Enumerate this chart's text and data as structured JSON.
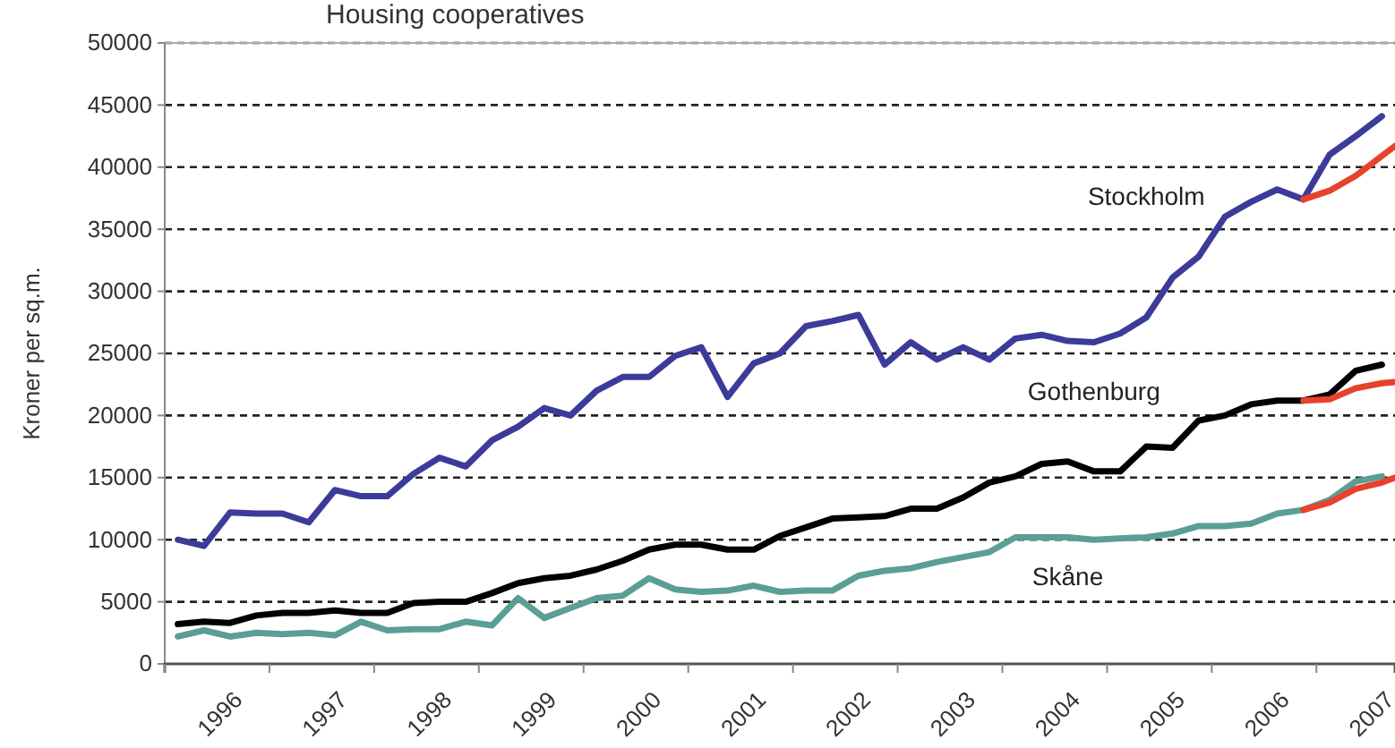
{
  "chart_data": {
    "type": "line",
    "title": "Housing cooperatives",
    "ylabel": "Kroner per sq.m.",
    "xlim": [
      1996,
      2007.75
    ],
    "xticks": [
      {
        "value": 1996,
        "label": null
      },
      {
        "value": 1996.5,
        "label": "1996"
      },
      {
        "value": 1997,
        "label": null
      },
      {
        "value": 1997.5,
        "label": "1997"
      },
      {
        "value": 1998,
        "label": null
      },
      {
        "value": 1998.5,
        "label": "1998"
      },
      {
        "value": 1999,
        "label": null
      },
      {
        "value": 1999.5,
        "label": "1999"
      },
      {
        "value": 2000,
        "label": null
      },
      {
        "value": 2000.5,
        "label": "2000"
      },
      {
        "value": 2001,
        "label": null
      },
      {
        "value": 2001.5,
        "label": "2001"
      },
      {
        "value": 2002,
        "label": null
      },
      {
        "value": 2002.5,
        "label": "2002"
      },
      {
        "value": 2003,
        "label": null
      },
      {
        "value": 2003.5,
        "label": "2003"
      },
      {
        "value": 2004,
        "label": null
      },
      {
        "value": 2004.5,
        "label": "2004"
      },
      {
        "value": 2005,
        "label": null
      },
      {
        "value": 2005.5,
        "label": "2005"
      },
      {
        "value": 2006,
        "label": null
      },
      {
        "value": 2006.5,
        "label": "2006"
      },
      {
        "value": 2007,
        "label": null
      },
      {
        "value": 2007.5,
        "label": "2007"
      }
    ],
    "ylim": [
      0,
      50000
    ],
    "yticks": [
      0,
      5000,
      10000,
      15000,
      20000,
      25000,
      30000,
      35000,
      40000,
      45000,
      50000
    ],
    "grid": "y",
    "line_style": "solid",
    "x": [
      1996.125,
      1996.375,
      1996.625,
      1996.875,
      1997.125,
      1997.375,
      1997.625,
      1997.875,
      1998.125,
      1998.375,
      1998.625,
      1998.875,
      1999.125,
      1999.375,
      1999.625,
      1999.875,
      2000.125,
      2000.375,
      2000.625,
      2000.875,
      2001.125,
      2001.375,
      2001.625,
      2001.875,
      2002.125,
      2002.375,
      2002.625,
      2002.875,
      2003.125,
      2003.375,
      2003.625,
      2003.875,
      2004.125,
      2004.375,
      2004.625,
      2004.875,
      2005.125,
      2005.375,
      2005.625,
      2005.875,
      2006.125,
      2006.375,
      2006.625,
      2006.875,
      2007.125,
      2007.375,
      2007.625
    ],
    "series": [
      {
        "name": "Stockholm",
        "color": "#3b3b9a",
        "values": [
          10000,
          9500,
          12200,
          12100,
          12100,
          11400,
          14000,
          13500,
          13500,
          15300,
          16600,
          15900,
          18000,
          19100,
          20600,
          20000,
          22000,
          23100,
          23100,
          24800,
          25500,
          21500,
          24200,
          25000,
          27200,
          27600,
          28100,
          24100,
          25900,
          24500,
          25500,
          24500,
          26200,
          26500,
          26000,
          25900,
          26600,
          27900,
          31100,
          32800,
          36000,
          37200,
          38200,
          37400,
          41000,
          42500,
          44100
        ]
      },
      {
        "name": "Gothenburg",
        "color": "#000000",
        "values": [
          3200,
          3400,
          3300,
          3900,
          4100,
          4100,
          4300,
          4100,
          4100,
          4900,
          5000,
          5000,
          5700,
          6500,
          6900,
          7100,
          7600,
          8300,
          9200,
          9600,
          9600,
          9200,
          9200,
          10300,
          11000,
          11700,
          11800,
          11900,
          12500,
          12500,
          13400,
          14600,
          15100,
          16100,
          16300,
          15500,
          15500,
          17500,
          17400,
          19600,
          20000,
          20900,
          21200,
          21200,
          21700,
          23600,
          24100
        ]
      },
      {
        "name": "Skåne",
        "color": "#5a9e96",
        "values": [
          2200,
          2700,
          2200,
          2500,
          2400,
          2500,
          2300,
          3400,
          2700,
          2800,
          2800,
          3400,
          3100,
          5300,
          3700,
          4500,
          5300,
          5500,
          6900,
          6000,
          5800,
          5900,
          6300,
          5800,
          5900,
          5900,
          7100,
          7500,
          7700,
          8200,
          8600,
          9000,
          10200,
          10200,
          10200,
          10000,
          10100,
          10200,
          10500,
          11100,
          11100,
          11300,
          12100,
          12400,
          13200,
          14700,
          15100
        ]
      },
      {
        "color": "#e8412c",
        "x": [
          2006.875,
          2007.125,
          2007.375,
          2007.625,
          2007.75
        ],
        "values": [
          37400,
          38100,
          39300,
          40900,
          41700
        ]
      },
      {
        "color": "#e8412c",
        "x": [
          2006.875,
          2007.125,
          2007.375,
          2007.625,
          2007.75
        ],
        "values": [
          21200,
          21300,
          22200,
          22600,
          22700
        ]
      },
      {
        "color": "#e8412c",
        "x": [
          2006.875,
          2007.125,
          2007.375,
          2007.625,
          2007.75
        ],
        "values": [
          12400,
          13000,
          14100,
          14600,
          15000
        ]
      }
    ]
  }
}
